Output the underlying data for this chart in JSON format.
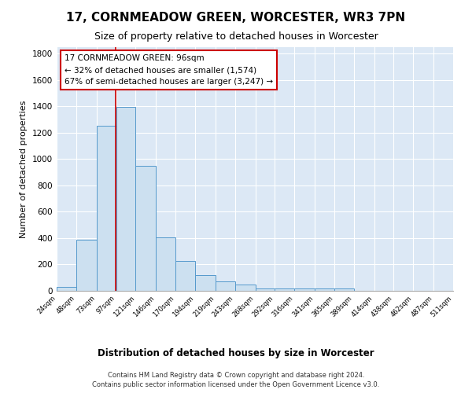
{
  "title": "17, CORNMEADOW GREEN, WORCESTER, WR3 7PN",
  "subtitle": "Size of property relative to detached houses in Worcester",
  "xlabel": "Distribution of detached houses by size in Worcester",
  "ylabel": "Number of detached properties",
  "footer_line1": "Contains HM Land Registry data © Crown copyright and database right 2024.",
  "footer_line2": "Contains public sector information licensed under the Open Government Licence v3.0.",
  "bins": [
    24,
    48,
    73,
    97,
    121,
    146,
    170,
    194,
    219,
    243,
    268,
    292,
    316,
    341,
    365,
    389,
    414,
    438,
    462,
    487,
    511
  ],
  "counts": [
    30,
    390,
    1255,
    1395,
    950,
    405,
    228,
    118,
    72,
    45,
    20,
    15,
    18,
    15,
    20,
    0,
    0,
    0,
    0,
    0
  ],
  "bar_color": "#cce0f0",
  "bar_edge_color": "#5599cc",
  "property_line_x": 96,
  "annotation_text": "17 CORNMEADOW GREEN: 96sqm\n← 32% of detached houses are smaller (1,574)\n67% of semi-detached houses are larger (3,247) →",
  "annotation_box_color": "#ffffff",
  "annotation_box_edge": "#cc0000",
  "annotation_line_color": "#cc0000",
  "ylim": [
    0,
    1850
  ],
  "background_color": "#dce8f5",
  "grid_color": "#ffffff",
  "fig_background": "#ffffff",
  "title_fontsize": 11,
  "subtitle_fontsize": 9,
  "ylabel_fontsize": 8,
  "xlabel_fontsize": 8.5,
  "tick_labels": [
    "24sqm",
    "48sqm",
    "73sqm",
    "97sqm",
    "121sqm",
    "146sqm",
    "170sqm",
    "194sqm",
    "219sqm",
    "243sqm",
    "268sqm",
    "292sqm",
    "316sqm",
    "341sqm",
    "365sqm",
    "389sqm",
    "414sqm",
    "438sqm",
    "462sqm",
    "487sqm",
    "511sqm"
  ]
}
